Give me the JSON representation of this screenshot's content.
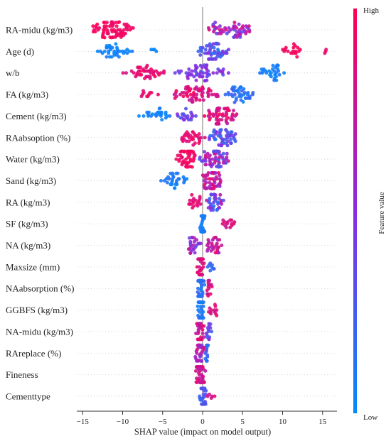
{
  "chart_data": {
    "type": "scatter",
    "subtype": "shap-beeswarm",
    "xlabel": "SHAP value (impact on model output)",
    "xlim": [
      -16,
      17
    ],
    "xticks": [
      -15,
      -10,
      -5,
      0,
      5,
      10,
      15
    ],
    "grid": false,
    "colorbar": {
      "title": "Feature value",
      "high_label": "High",
      "low_label": "Low",
      "high_color": "#ff0051",
      "low_color": "#008bfb",
      "mid_color": "#8a2be2"
    },
    "features": [
      {
        "name": "RA-midu (kg/m3)",
        "clusters": [
          {
            "lo": -14.5,
            "hi": -8,
            "c": 0.95,
            "n": 70,
            "cv": 0.06
          },
          {
            "lo": 0.5,
            "hi": 6.5,
            "c": 0.6,
            "n": 55,
            "cv": 0.3
          }
        ]
      },
      {
        "name": "Age (d)",
        "clusters": [
          {
            "lo": -13.5,
            "hi": -8.5,
            "c": 0.05,
            "n": 35,
            "cv": 0.05
          },
          {
            "lo": -7,
            "hi": -5.5,
            "c": 0.05,
            "n": 4,
            "cv": 0.03
          },
          {
            "lo": -1,
            "hi": 3.5,
            "c": 0.3,
            "n": 55,
            "cv": 0.25
          },
          {
            "lo": 10,
            "hi": 12.5,
            "c": 0.95,
            "n": 18,
            "cv": 0.04
          },
          {
            "lo": 15,
            "hi": 15.8,
            "c": 0.95,
            "n": 3,
            "cv": 0.03
          }
        ]
      },
      {
        "name": "w/b",
        "clusters": [
          {
            "lo": -10,
            "hi": -3.5,
            "c": 0.9,
            "n": 40,
            "cv": 0.08
          },
          {
            "lo": -4,
            "hi": 3.5,
            "c": 0.45,
            "n": 55,
            "cv": 0.15
          },
          {
            "lo": 6.5,
            "hi": 10.5,
            "c": 0.08,
            "n": 28,
            "cv": 0.06
          }
        ]
      },
      {
        "name": "FA (kg/m3)",
        "clusters": [
          {
            "lo": -8.5,
            "hi": -5,
            "c": 0.9,
            "n": 10,
            "cv": 0.06
          },
          {
            "lo": -4,
            "hi": 2.5,
            "c": 0.85,
            "n": 60,
            "cv": 0.12
          },
          {
            "lo": 2,
            "hi": 7,
            "c": 0.15,
            "n": 40,
            "cv": 0.1
          }
        ]
      },
      {
        "name": "Cement (kg/m3)",
        "clusters": [
          {
            "lo": -8,
            "hi": -3.5,
            "c": 0.05,
            "n": 25,
            "cv": 0.05
          },
          {
            "lo": -3.5,
            "hi": 0,
            "c": 0.4,
            "n": 20,
            "cv": 0.15
          },
          {
            "lo": 0,
            "hi": 4.5,
            "c": 0.85,
            "n": 50,
            "cv": 0.12
          }
        ]
      },
      {
        "name": "RAabsoption (%)",
        "clusters": [
          {
            "lo": -3,
            "hi": 0.5,
            "c": 0.9,
            "n": 30,
            "cv": 0.08
          },
          {
            "lo": 0.5,
            "hi": 4.5,
            "c": 0.3,
            "n": 50,
            "cv": 0.2
          }
        ]
      },
      {
        "name": "Water (kg/m3)",
        "clusters": [
          {
            "lo": -3.5,
            "hi": -0.5,
            "c": 0.95,
            "n": 45,
            "cv": 0.05
          },
          {
            "lo": -0.5,
            "hi": 3.5,
            "c": 0.5,
            "n": 60,
            "cv": 0.3
          }
        ]
      },
      {
        "name": "Sand (kg/m3)",
        "clusters": [
          {
            "lo": -5.5,
            "hi": -1.5,
            "c": 0.08,
            "n": 30,
            "cv": 0.06
          },
          {
            "lo": -0.5,
            "hi": 2.5,
            "c": 0.75,
            "n": 55,
            "cv": 0.2
          }
        ]
      },
      {
        "name": "RA (kg/m3)",
        "clusters": [
          {
            "lo": -2.5,
            "hi": 0,
            "c": 0.9,
            "n": 18,
            "cv": 0.08
          },
          {
            "lo": 0,
            "hi": 2.8,
            "c": 0.4,
            "n": 35,
            "cv": 0.3
          }
        ]
      },
      {
        "name": "SF (kg/m3)",
        "clusters": [
          {
            "lo": -0.4,
            "hi": 0.3,
            "c": 0.08,
            "n": 40,
            "cv": 0.05
          },
          {
            "lo": 2,
            "hi": 4.5,
            "c": 0.85,
            "n": 14,
            "cv": 0.1
          }
        ]
      },
      {
        "name": "NA (kg/m3)",
        "clusters": [
          {
            "lo": -2.3,
            "hi": 0,
            "c": 0.55,
            "n": 25,
            "cv": 0.2
          },
          {
            "lo": 0,
            "hi": 2.8,
            "c": 0.75,
            "n": 30,
            "cv": 0.15
          }
        ]
      },
      {
        "name": "Maxsize (mm)",
        "clusters": [
          {
            "lo": -0.8,
            "hi": 0.3,
            "c": 0.85,
            "n": 40,
            "cv": 0.08
          },
          {
            "lo": 0.5,
            "hi": 1.8,
            "c": 0.15,
            "n": 8,
            "cv": 0.06
          }
        ]
      },
      {
        "name": "NAabsorption (%)",
        "clusters": [
          {
            "lo": -0.8,
            "hi": 0.3,
            "c": 0.15,
            "n": 40,
            "cv": 0.08
          },
          {
            "lo": 0.3,
            "hi": 1.5,
            "c": 0.8,
            "n": 14,
            "cv": 0.1
          }
        ]
      },
      {
        "name": "GGBFS (kg/m3)",
        "clusters": [
          {
            "lo": -0.7,
            "hi": 0.3,
            "c": 0.1,
            "n": 40,
            "cv": 0.06
          },
          {
            "lo": 0.5,
            "hi": 1.9,
            "c": 0.85,
            "n": 12,
            "cv": 0.08
          }
        ]
      },
      {
        "name": "NA-midu (kg/m3)",
        "clusters": [
          {
            "lo": -1,
            "hi": 0.3,
            "c": 0.8,
            "n": 40,
            "cv": 0.12
          },
          {
            "lo": 0.3,
            "hi": 1.2,
            "c": 0.35,
            "n": 14,
            "cv": 0.2
          }
        ]
      },
      {
        "name": "RAreplace (%)",
        "clusters": [
          {
            "lo": -1,
            "hi": 0.3,
            "c": 0.65,
            "n": 35,
            "cv": 0.2
          },
          {
            "lo": 0.3,
            "hi": 0.8,
            "c": 0.2,
            "n": 14,
            "cv": 0.1
          }
        ]
      },
      {
        "name": "Fineness",
        "clusters": [
          {
            "lo": -1,
            "hi": 0.5,
            "c": 0.8,
            "n": 45,
            "cv": 0.12
          }
        ]
      },
      {
        "name": "Cementtype",
        "clusters": [
          {
            "lo": -0.4,
            "hi": 0.5,
            "c": 0.25,
            "n": 40,
            "cv": 0.1
          },
          {
            "lo": 0.5,
            "hi": 1.8,
            "c": 0.85,
            "n": 5,
            "cv": 0.08
          }
        ]
      }
    ]
  }
}
